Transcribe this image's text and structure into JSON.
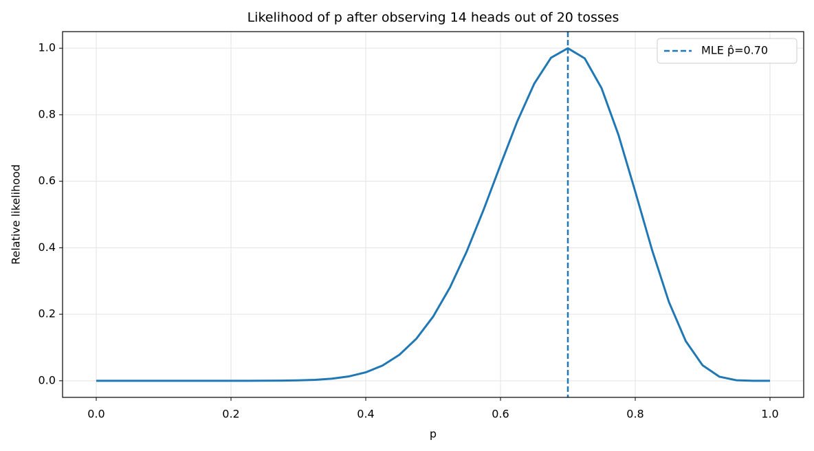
{
  "chart_data": {
    "type": "line",
    "title": "Likelihood of p after observing 14 heads out of 20 tosses",
    "xlabel": "p",
    "ylabel": "Relative likelihood",
    "x": [
      0,
      0.025,
      0.05,
      0.075,
      0.1,
      0.125,
      0.15,
      0.175,
      0.2,
      0.225,
      0.25,
      0.275,
      0.3,
      0.325,
      0.35,
      0.375,
      0.4,
      0.425,
      0.45,
      0.475,
      0.5,
      0.525,
      0.55,
      0.575,
      0.6,
      0.625,
      0.65,
      0.675,
      0.7,
      0.725,
      0.75,
      0.775,
      0.8,
      0.825,
      0.85,
      0.875,
      0.9,
      0.925,
      0.95,
      0.975,
      1
    ],
    "series": [
      {
        "color": "#1f77b4",
        "values": [
          0,
          0,
          0,
          0,
          0,
          0,
          0,
          0,
          0,
          0,
          0.0001,
          0.0004,
          0.0011,
          0.0028,
          0.0063,
          0.0131,
          0.0253,
          0.0459,
          0.0782,
          0.1261,
          0.1928,
          0.2806,
          0.3894,
          0.5148,
          0.6492,
          0.7804,
          0.8932,
          0.9715,
          1,
          0.9696,
          0.88,
          0.74,
          0.569,
          0.393,
          0.2368,
          0.119,
          0.0463,
          0.0121,
          0.0015,
          0,
          0
        ]
      }
    ],
    "vlines": [
      {
        "x": 0.7,
        "label": "MLE p̂=0.70",
        "color": "#1f77b4",
        "dash": true
      }
    ],
    "xlim": [
      -0.05,
      1.05
    ],
    "ylim": [
      -0.05,
      1.05
    ],
    "xticks": [
      {
        "value": 0,
        "label": "0.0"
      },
      {
        "value": 0.2,
        "label": "0.2"
      },
      {
        "value": 0.4,
        "label": "0.4"
      },
      {
        "value": 0.6,
        "label": "0.6"
      },
      {
        "value": 0.8,
        "label": "0.8"
      },
      {
        "value": 1,
        "label": "1.0"
      }
    ],
    "yticks": [
      {
        "value": 0,
        "label": "0.0"
      },
      {
        "value": 0.2,
        "label": "0.2"
      },
      {
        "value": 0.4,
        "label": "0.4"
      },
      {
        "value": 0.6,
        "label": "0.6"
      },
      {
        "value": 0.8,
        "label": "0.8"
      },
      {
        "value": 1,
        "label": "1.0"
      }
    ],
    "grid": true,
    "legend": "upper right"
  }
}
